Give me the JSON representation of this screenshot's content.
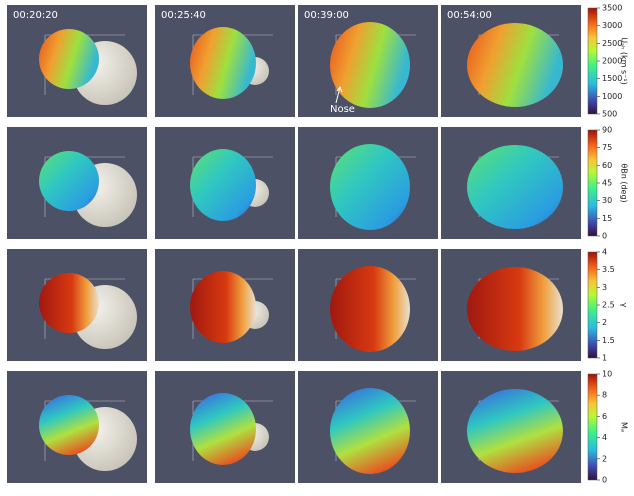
{
  "panels": {
    "times": [
      "00:20:20",
      "00:25:40",
      "00:39:00",
      "00:54:00"
    ]
  },
  "annotation": "Nose",
  "colorbars": [
    {
      "label": "Uₛₕ (km s⁻¹)",
      "lim": [
        500,
        3500
      ],
      "ticks": [
        500,
        1000,
        1500,
        2000,
        2500,
        3000,
        3500
      ]
    },
    {
      "label": "θBn (deg)",
      "lim": [
        0,
        90
      ],
      "ticks": [
        0,
        15,
        30,
        45,
        60,
        75,
        90
      ]
    },
    {
      "label": "γ",
      "lim": [
        1,
        4
      ],
      "ticks": [
        1,
        1.5,
        2,
        2.5,
        3,
        3.5,
        4
      ]
    },
    {
      "label": "Mₐ",
      "lim": [
        0,
        10
      ],
      "ticks": [
        0,
        2,
        4,
        6,
        8,
        10
      ]
    }
  ]
}
